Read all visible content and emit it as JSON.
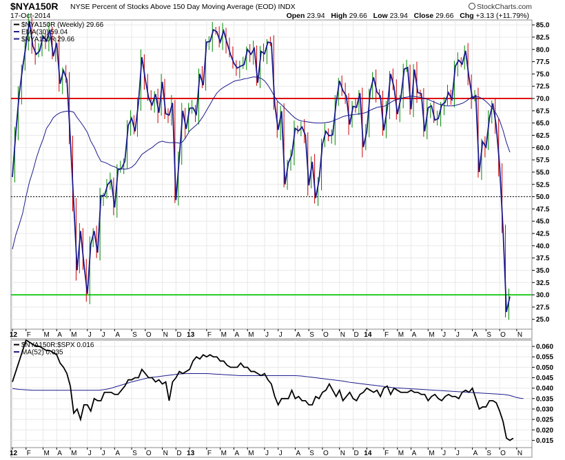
{
  "header": {
    "symbol": "$NYA150R",
    "description": "NYSE Percent of Stocks Above 150 Day Moving Average (EOD)",
    "exchange": "INDX",
    "date": "17-Oct-2014",
    "brand": "StockCharts.com",
    "open_label": "Open",
    "open": "23.94",
    "high_label": "High",
    "high": "29.66",
    "low_label": "Low",
    "low": "23.94",
    "close_label": "Close",
    "close": "29.66",
    "chg_label": "Chg",
    "chg": "+3.13 (+11.79%)"
  },
  "chart_data": [
    {
      "type": "line",
      "panel": "main",
      "legend": [
        {
          "text": "$NYA150R (Weekly) 29.66",
          "color": "#000000"
        },
        {
          "text": "EMA(30) 59.04",
          "color": "#1a1a8c"
        },
        {
          "text": "$NYA150R 29.66",
          "color": "#1a1a8c"
        }
      ],
      "ylim": [
        23,
        86
      ],
      "yticks": [
        25,
        27.5,
        30,
        32.5,
        35,
        37.5,
        40,
        42.5,
        45,
        47.5,
        50,
        52.5,
        55,
        57.5,
        60,
        62.5,
        65,
        67.5,
        70,
        72.5,
        75,
        77.5,
        80,
        82.5,
        85
      ],
      "reference_lines": [
        {
          "value": 70,
          "color": "#e00000",
          "style": "solid"
        },
        {
          "value": 50,
          "color": "#000000",
          "style": "dashed"
        },
        {
          "value": 30,
          "color": "#22cc22",
          "style": "solid"
        }
      ],
      "x_start": "2012-01-06",
      "weeks": 146,
      "series": [
        {
          "name": "$NYA150R",
          "color": "#1a1a8c",
          "style": "line",
          "values": [
            54.0,
            63.1,
            70.9,
            76.3,
            80.9,
            85.8,
            80.7,
            79.0,
            79.7,
            82.7,
            81.7,
            84.0,
            78.6,
            81.3,
            73.0,
            75.7,
            73.8,
            61.8,
            48.6,
            35.0,
            43.0,
            36.2,
            30.2,
            40.3,
            43.0,
            38.6,
            50.2,
            50.2,
            52.5,
            53.3,
            47.8,
            55.5,
            55.7,
            57.2,
            64.5,
            66.0,
            63.3,
            69.1,
            78.4,
            73.9,
            70.1,
            68.7,
            70.9,
            67.1,
            73.4,
            66.9,
            66.6,
            69.1,
            49.3,
            58.1,
            67.5,
            63.8,
            68.0,
            68.1,
            66.8,
            75.0,
            72.7,
            81.5,
            81.6,
            84.0,
            83.6,
            81.5,
            83.8,
            81.3,
            79.0,
            77.2,
            76.2,
            76.6,
            76.9,
            80.0,
            79.0,
            80.2,
            73.2,
            79.6,
            79.1,
            81.5,
            81.3,
            68.8,
            63.6,
            67.4,
            52.5,
            56.9,
            58.5,
            63.9,
            63.4,
            64.2,
            62.5,
            52.3,
            57.1,
            49.7,
            53.4,
            60.7,
            63.3,
            62.4,
            62.6,
            69.1,
            73.6,
            71.6,
            70.5,
            64.7,
            68.4,
            68.2,
            71.1,
            60.1,
            63.2,
            71.4,
            74.3,
            71.3,
            70.5,
            63.5,
            67.9,
            75.0,
            72.3,
            66.8,
            70.1,
            76.0,
            76.3,
            67.8,
            75.9,
            71.2,
            71.0,
            63.3,
            68.1,
            68.5,
            65.6,
            65.9,
            68.7,
            69.2,
            71.2,
            69.8,
            76.6,
            77.8,
            77.0,
            79.7,
            74.3,
            70.0,
            70.6,
            55.0,
            61.2,
            60.1,
            66.0,
            69.0,
            64.4,
            56.2,
            43.2,
            26.5,
            29.66
          ]
        },
        {
          "name": "EMA(30)",
          "color": "#1a1a8c",
          "style": "line",
          "values": [
            39.3,
            42.2,
            44.3,
            46.6,
            50.0,
            53.0,
            55.2,
            57.8,
            59.9,
            61.7,
            63.9,
            64.9,
            66.1,
            66.7,
            67.1,
            67.3,
            67.4,
            67.4,
            67.2,
            66.1,
            65.2,
            64.2,
            63.1,
            61.3,
            60.1,
            58.5,
            57.2,
            57.0,
            56.7,
            56.3,
            56.1,
            55.7,
            55.7,
            55.6,
            55.7,
            56.0,
            56.6,
            57.6,
            58.6,
            59.1,
            59.6,
            60.0,
            60.6,
            61.1,
            61.3,
            61.1,
            61.0,
            61.0,
            61.0,
            60.9,
            61.2,
            62.2,
            63.4,
            64.0,
            64.6,
            65.4,
            66.4,
            67.6,
            68.8,
            70.0,
            71.1,
            71.8,
            72.3,
            72.7,
            73.1,
            73.5,
            73.7,
            73.8,
            74.0,
            74.1,
            74.3,
            74.4,
            74.3,
            74.1,
            73.6,
            72.7,
            71.6,
            70.3,
            69.3,
            68.7,
            68.0,
            67.3,
            66.6,
            66.0,
            65.6,
            65.4,
            65.3,
            65.2,
            65.1,
            65.0,
            65.0,
            65.0,
            65.1,
            65.2,
            65.4,
            65.7,
            66.0,
            66.3,
            66.5,
            66.6,
            66.7,
            66.8,
            66.9,
            67.0,
            67.2,
            67.6,
            67.9,
            68.2,
            68.3,
            68.4,
            68.7,
            69.2,
            69.6,
            69.8,
            70.0,
            70.2,
            70.3,
            70.5,
            70.4,
            70.3,
            70.2,
            70.0,
            69.8,
            69.5,
            69.2,
            68.9,
            68.7,
            68.5,
            68.5,
            68.5,
            68.6,
            68.8,
            69.0,
            69.4,
            69.9,
            70.4,
            70.4,
            70.3,
            69.9,
            69.4,
            68.7,
            67.9,
            66.9,
            65.5,
            63.5,
            61.0,
            59.04
          ]
        }
      ]
    },
    {
      "type": "line",
      "panel": "ratio",
      "legend": [
        {
          "text": "$NYA150R:$SPX 0.016",
          "color": "#000000"
        },
        {
          "text": "MA(52) 0.035",
          "color": "#1a1a8c"
        }
      ],
      "ylim": [
        0.0115,
        0.063
      ],
      "yticks": [
        "0.015",
        "0.020",
        "0.025",
        "0.030",
        "0.035",
        "0.040",
        "0.045",
        "0.050",
        "0.055",
        "0.060"
      ],
      "series": [
        {
          "name": "$NYA150R:$SPX",
          "color": "#000000",
          "values": [
            0.043,
            0.048,
            0.053,
            0.058,
            0.063,
            0.062,
            0.061,
            0.06,
            0.06,
            0.059,
            0.058,
            0.058,
            0.057,
            0.056,
            0.052,
            0.05,
            0.047,
            0.041,
            0.028,
            0.03,
            0.025,
            0.032,
            0.032,
            0.029,
            0.035,
            0.034,
            0.034,
            0.038,
            0.038,
            0.038,
            0.037,
            0.037,
            0.039,
            0.041,
            0.044,
            0.044,
            0.045,
            0.045,
            0.049,
            0.047,
            0.045,
            0.045,
            0.043,
            0.044,
            0.042,
            0.043,
            0.034,
            0.043,
            0.045,
            0.048,
            0.047,
            0.048,
            0.049,
            0.053,
            0.055,
            0.054,
            0.056,
            0.055,
            0.056,
            0.055,
            0.055,
            0.053,
            0.053,
            0.051,
            0.05,
            0.05,
            0.05,
            0.052,
            0.05,
            0.05,
            0.048,
            0.048,
            0.047,
            0.046,
            0.047,
            0.044,
            0.042,
            0.036,
            0.032,
            0.035,
            0.035,
            0.035,
            0.039,
            0.035,
            0.036,
            0.034,
            0.034,
            0.032,
            0.032,
            0.036,
            0.035,
            0.038,
            0.039,
            0.042,
            0.039,
            0.036,
            0.039,
            0.034,
            0.036,
            0.038,
            0.035,
            0.034,
            0.037,
            0.038,
            0.04,
            0.039,
            0.038,
            0.039,
            0.036,
            0.04,
            0.041,
            0.037,
            0.04,
            0.039,
            0.038,
            0.038,
            0.038,
            0.039,
            0.038,
            0.038,
            0.037,
            0.037,
            0.034,
            0.036,
            0.037,
            0.035,
            0.034,
            0.036,
            0.037,
            0.036,
            0.036,
            0.035,
            0.038,
            0.039,
            0.038,
            0.04,
            0.035,
            0.03,
            0.031,
            0.031,
            0.034,
            0.034,
            0.033,
            0.029,
            0.024,
            0.016,
            0.015,
            0.016
          ]
        },
        {
          "name": "MA(52)",
          "color": "#1a1a8c",
          "values": [
            0.0398,
            0.0396,
            0.0394,
            0.0393,
            0.0392,
            0.0391,
            0.039,
            0.039,
            0.039,
            0.039,
            0.039,
            0.039,
            0.039,
            0.039,
            0.039,
            0.039,
            0.039,
            0.039,
            0.039,
            0.039,
            0.039,
            0.039,
            0.039,
            0.039,
            0.039,
            0.039,
            0.0391,
            0.0393,
            0.0396,
            0.04,
            0.0405,
            0.041,
            0.0415,
            0.042,
            0.0425,
            0.043,
            0.0434,
            0.0438,
            0.0442,
            0.0446,
            0.045,
            0.0452,
            0.0454,
            0.0456,
            0.0458,
            0.046,
            0.0462,
            0.0464,
            0.0466,
            0.0468,
            0.0469,
            0.047,
            0.047,
            0.047,
            0.047,
            0.047,
            0.047,
            0.047,
            0.0469,
            0.0468,
            0.0467,
            0.0466,
            0.0465,
            0.0464,
            0.0463,
            0.0462,
            0.0461,
            0.046,
            0.046,
            0.046,
            0.046,
            0.046,
            0.046,
            0.046,
            0.046,
            0.046,
            0.046,
            0.046,
            0.046,
            0.046,
            0.046,
            0.046,
            0.046,
            0.046,
            0.0459,
            0.0458,
            0.0456,
            0.0454,
            0.0452,
            0.045,
            0.0448,
            0.0446,
            0.0444,
            0.0442,
            0.044,
            0.0438,
            0.0436,
            0.0434,
            0.0431,
            0.0428,
            0.0426,
            0.0424,
            0.0422,
            0.042,
            0.0418,
            0.0416,
            0.0414,
            0.0412,
            0.041,
            0.0408,
            0.0406,
            0.0404,
            0.0402,
            0.0401,
            0.04,
            0.0399,
            0.0398,
            0.0397,
            0.0396,
            0.0395,
            0.0394,
            0.0393,
            0.0392,
            0.0391,
            0.039,
            0.0389,
            0.0388,
            0.0387,
            0.0386,
            0.0385,
            0.0384,
            0.0383,
            0.0382,
            0.0381,
            0.038,
            0.0379,
            0.0378,
            0.0377,
            0.0376,
            0.0375,
            0.0374,
            0.0373,
            0.0372,
            0.0371,
            0.037,
            0.0368,
            0.0365,
            0.036,
            0.0355,
            0.0352,
            0.035
          ]
        }
      ]
    }
  ],
  "x_axis": {
    "labels": [
      {
        "text": "12",
        "week": 0,
        "bold": true
      },
      {
        "text": "F",
        "week": 4
      },
      {
        "text": "M",
        "week": 9
      },
      {
        "text": "A",
        "week": 13
      },
      {
        "text": "M",
        "week": 17
      },
      {
        "text": "J",
        "week": 22
      },
      {
        "text": "J",
        "week": 26
      },
      {
        "text": "A",
        "week": 30
      },
      {
        "text": "S",
        "week": 35
      },
      {
        "text": "O",
        "week": 39
      },
      {
        "text": "N",
        "week": 44
      },
      {
        "text": "D",
        "week": 48
      },
      {
        "text": "13",
        "week": 52,
        "bold": true
      },
      {
        "text": "F",
        "week": 57
      },
      {
        "text": "M",
        "week": 61
      },
      {
        "text": "A",
        "week": 65
      },
      {
        "text": "M",
        "week": 69
      },
      {
        "text": "J",
        "week": 74
      },
      {
        "text": "J",
        "week": 78
      },
      {
        "text": "A",
        "week": 83
      },
      {
        "text": "S",
        "week": 87
      },
      {
        "text": "O",
        "week": 91
      },
      {
        "text": "N",
        "week": 96
      },
      {
        "text": "D",
        "week": 100
      },
      {
        "text": "14",
        "week": 104,
        "bold": true
      },
      {
        "text": "F",
        "week": 109
      },
      {
        "text": "M",
        "week": 113
      },
      {
        "text": "A",
        "week": 117
      },
      {
        "text": "M",
        "week": 122
      },
      {
        "text": "J",
        "week": 126
      },
      {
        "text": "J",
        "week": 130
      },
      {
        "text": "A",
        "week": 135
      },
      {
        "text": "S",
        "week": 139
      },
      {
        "text": "O",
        "week": 143
      },
      {
        "text": "N",
        "week": 148
      }
    ]
  },
  "colors": {
    "up_bar": "#008800",
    "down_bar": "#cc0000",
    "price_line": "#1a1a8c",
    "grid": "#e8e8e8",
    "ratio_line": "#000000"
  }
}
